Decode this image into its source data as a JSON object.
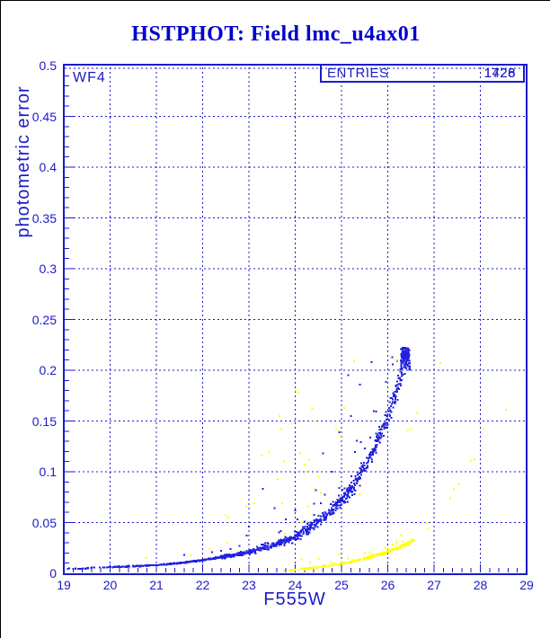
{
  "window": {
    "background": "#ffffff",
    "border_color": "#000000"
  },
  "title": {
    "text": "HSTPHOT: Field lmc_u4ax01",
    "color": "#0000cc"
  },
  "plot": {
    "accent_color": "#1b1bc8",
    "detector_label": "WF4",
    "stats_box": {
      "label": "ENTRIES",
      "values": [
        "1428",
        "1726"
      ]
    },
    "x_axis": {
      "title": "F555W",
      "min": 19,
      "max": 29,
      "minor_tick_step": 0.2,
      "tick_labels": [
        "19",
        "20",
        "21",
        "22",
        "23",
        "24",
        "25",
        "26",
        "27",
        "28",
        "29"
      ]
    },
    "y_axis": {
      "title": "photometric error",
      "min": 0,
      "max": 0.5,
      "minor_tick_step": 0.01,
      "tick_labels": [
        "0",
        "0.05",
        "0.1",
        "0.15",
        "0.2",
        "0.25",
        "0.3",
        "0.35",
        "0.4",
        "0.45",
        "0.5"
      ]
    }
  },
  "chart_data": {
    "type": "scatter",
    "title": "HSTPHOT: Field lmc_u4ax01",
    "xlabel": "F555W",
    "ylabel": "photometric error",
    "xlim": [
      19,
      29
    ],
    "ylim": [
      0,
      0.5
    ],
    "grid": "dashed-major",
    "legend": "none",
    "series": [
      {
        "name": "blue-error-sequence",
        "color": "#2222dd",
        "marker": "square-2px",
        "ridge": [
          [
            19,
            0.004
          ],
          [
            19.5,
            0.005
          ],
          [
            20,
            0.006
          ],
          [
            20.5,
            0.007
          ],
          [
            21,
            0.008
          ],
          [
            21.5,
            0.01
          ],
          [
            22,
            0.013
          ],
          [
            22.5,
            0.0165
          ],
          [
            23,
            0.021
          ],
          [
            23.5,
            0.027
          ],
          [
            24,
            0.036
          ],
          [
            24.5,
            0.05
          ],
          [
            25,
            0.072
          ],
          [
            25.3,
            0.089
          ],
          [
            25.6,
            0.112
          ],
          [
            25.9,
            0.142
          ],
          [
            26.1,
            0.167
          ],
          [
            26.25,
            0.19
          ],
          [
            26.46,
            0.218
          ]
        ],
        "ridge_points": 1050,
        "terminal_clump": {
          "mag_range": [
            26.28,
            26.48
          ],
          "err_range": [
            0.193,
            0.222
          ],
          "points": 130
        },
        "outliers": [
          [
            21.6,
            0.018
          ],
          [
            22.2,
            0.021
          ],
          [
            22.4,
            0.022
          ],
          [
            22.6,
            0.024
          ],
          [
            22.8,
            0.027
          ],
          [
            22.95,
            0.037
          ],
          [
            23.0,
            0.046
          ],
          [
            23.3,
            0.083
          ],
          [
            23.4,
            0.03
          ],
          [
            23.55,
            0.064
          ],
          [
            23.8,
            0.053
          ],
          [
            24.0,
            0.062
          ],
          [
            24.2,
            0.051
          ],
          [
            24.45,
            0.082
          ],
          [
            24.6,
            0.118
          ],
          [
            24.8,
            0.1
          ],
          [
            24.95,
            0.139
          ],
          [
            25.15,
            0.195
          ],
          [
            25.2,
            0.155
          ],
          [
            25.4,
            0.186
          ],
          [
            25.65,
            0.208
          ]
        ]
      },
      {
        "name": "yellow-error-sequence",
        "color": "#ffff00",
        "marker": "square-2px",
        "ridge": [
          [
            23.7,
            0.0025
          ],
          [
            24,
            0.0035
          ],
          [
            24.5,
            0.006
          ],
          [
            25,
            0.0095
          ],
          [
            25.5,
            0.0145
          ],
          [
            26,
            0.021
          ],
          [
            26.3,
            0.027
          ],
          [
            26.55,
            0.032
          ]
        ],
        "ridge_points": 250,
        "outliers": [
          [
            20.78,
            0.015
          ],
          [
            21.74,
            0.018
          ],
          [
            22.16,
            0.024
          ],
          [
            22.5,
            0.057
          ],
          [
            22.53,
            0.03
          ],
          [
            22.55,
            0.055
          ],
          [
            22.94,
            0.066
          ],
          [
            23.12,
            0.069
          ],
          [
            23.27,
            0.116
          ],
          [
            23.43,
            0.119
          ],
          [
            23.62,
            0.093
          ],
          [
            23.66,
            0.155
          ],
          [
            23.69,
            0.142
          ],
          [
            23.72,
            0.069
          ],
          [
            23.76,
            0.11
          ],
          [
            23.78,
            0.039
          ],
          [
            24.01,
            0.18
          ],
          [
            24.07,
            0.178
          ],
          [
            24.11,
            0.118
          ],
          [
            24.16,
            0.05
          ],
          [
            24.2,
            0.107
          ],
          [
            24.25,
            0.1
          ],
          [
            24.27,
            0.066
          ],
          [
            24.3,
            0.112
          ],
          [
            24.37,
            0.162
          ],
          [
            24.4,
            0.15
          ],
          [
            24.42,
            0.083
          ],
          [
            24.5,
            0.095
          ],
          [
            24.55,
            0.079
          ],
          [
            24.88,
            0.142
          ],
          [
            24.98,
            0.135
          ],
          [
            25.02,
            0.009
          ],
          [
            25.06,
            0.163
          ],
          [
            25.27,
            0.209
          ],
          [
            25.4,
            0.078
          ],
          [
            26.2,
            0.21
          ],
          [
            26.44,
            0.141
          ],
          [
            26.5,
            0.142
          ],
          [
            26.63,
            0.158
          ],
          [
            26.83,
            0.05
          ],
          [
            26.85,
            0.049
          ],
          [
            26.87,
            0.044
          ],
          [
            27.14,
            0.207
          ],
          [
            27.35,
            0.074
          ],
          [
            27.43,
            0.083
          ],
          [
            27.54,
            0.088
          ],
          [
            27.8,
            0.111
          ],
          [
            27.87,
            0.112
          ],
          [
            28.07,
            0.142
          ],
          [
            28.55,
            0.161
          ]
        ]
      }
    ]
  }
}
